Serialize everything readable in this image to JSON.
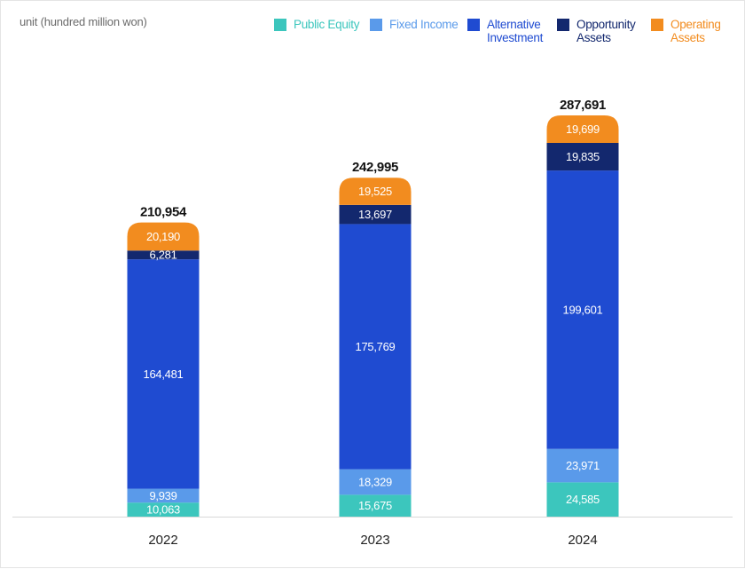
{
  "unit_label": "unit (hundred million won)",
  "legend": [
    {
      "label": "Public Equity",
      "color": "#3cc6bd"
    },
    {
      "label": "Fixed Income",
      "color": "#5a9aea"
    },
    {
      "label": "Alternative Investment",
      "color": "#1f4bd1"
    },
    {
      "label": "Opportunity Assets",
      "color": "#13286e"
    },
    {
      "label": "Operating Assets",
      "color": "#f28c1f"
    }
  ],
  "chart_data": {
    "type": "bar",
    "stacked": true,
    "categories": [
      "2022",
      "2023",
      "2024"
    ],
    "series": [
      {
        "name": "Public Equity",
        "color": "#3cc6bd",
        "values": [
          10063,
          15675,
          24585
        ],
        "labels": [
          "10,063",
          "15,675",
          "24,585"
        ]
      },
      {
        "name": "Fixed Income",
        "color": "#5a9aea",
        "values": [
          9939,
          18329,
          23971
        ],
        "labels": [
          "9,939",
          "18,329",
          "23,971"
        ]
      },
      {
        "name": "Alternative Investment",
        "color": "#1f4bd1",
        "values": [
          164481,
          175769,
          199601
        ],
        "labels": [
          "164,481",
          "175,769",
          "199,601"
        ]
      },
      {
        "name": "Opportunity Assets",
        "color": "#13286e",
        "values": [
          6281,
          13697,
          19835
        ],
        "labels": [
          "6,281",
          "13,697",
          "19,835"
        ]
      },
      {
        "name": "Operating Assets",
        "color": "#f28c1f",
        "values": [
          20190,
          19525,
          19699
        ],
        "labels": [
          "20,190",
          "19,525",
          "19,699"
        ]
      }
    ],
    "totals": [
      210954,
      242995,
      287691
    ],
    "total_labels": [
      "210,954",
      "242,995",
      "287,691"
    ],
    "ylim": [
      0,
      287691
    ],
    "grid": false,
    "legend_position": "top-right"
  }
}
